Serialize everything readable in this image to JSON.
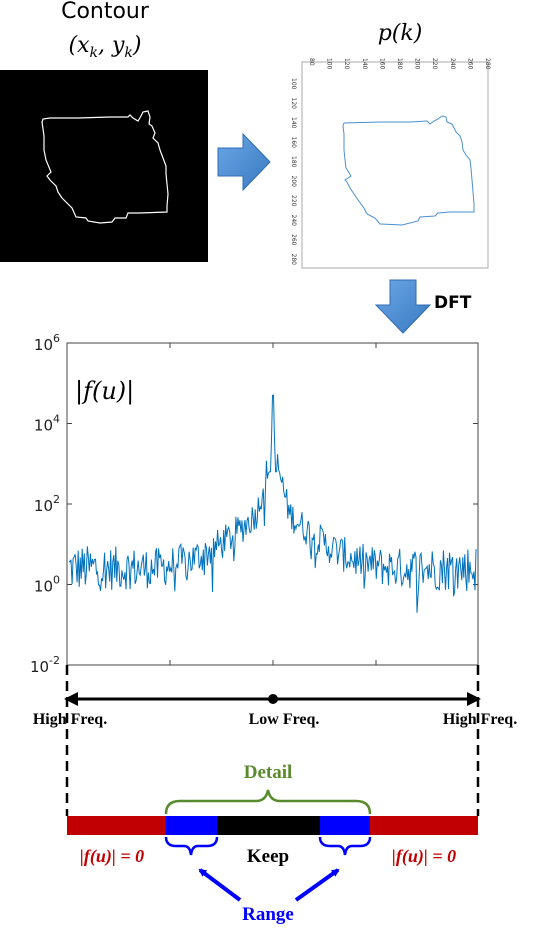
{
  "contour_panel": {
    "title_line1": "Contour",
    "title_line2": "(x_k, y_k)"
  },
  "pk_panel": {
    "title": "p(k)",
    "top_ticks": [
      "80",
      "100",
      "120",
      "140",
      "160",
      "180",
      "200",
      "220",
      "240",
      "260",
      "280"
    ],
    "left_ticks": [
      "100",
      "120",
      "140",
      "160",
      "180",
      "200",
      "220",
      "240",
      "260",
      "280"
    ]
  },
  "dft_label": "DFT",
  "spectrum": {
    "label": "|f(u)|",
    "y_ticks": [
      {
        "base": "10",
        "exp": "6"
      },
      {
        "base": "10",
        "exp": "4"
      },
      {
        "base": "10",
        "exp": "2"
      },
      {
        "base": "10",
        "exp": "0"
      },
      {
        "base": "10",
        "exp": "-2"
      }
    ]
  },
  "freq_axis": {
    "left": "High Freq.",
    "center": "Low Freq.",
    "right": "High Freq."
  },
  "band": {
    "detail": "Detail",
    "keep": "Keep",
    "range": "Range",
    "zero_left": "|f(u)| = 0",
    "zero_right": "|f(u)| = 0"
  },
  "colors": {
    "zero_band": "#c00000",
    "range_band": "#0000ff",
    "keep_band": "#000000",
    "detail_text": "#5a8a2e",
    "spectrum_line": "#0072bd",
    "arrow_fill": "#4a8cd0"
  }
}
